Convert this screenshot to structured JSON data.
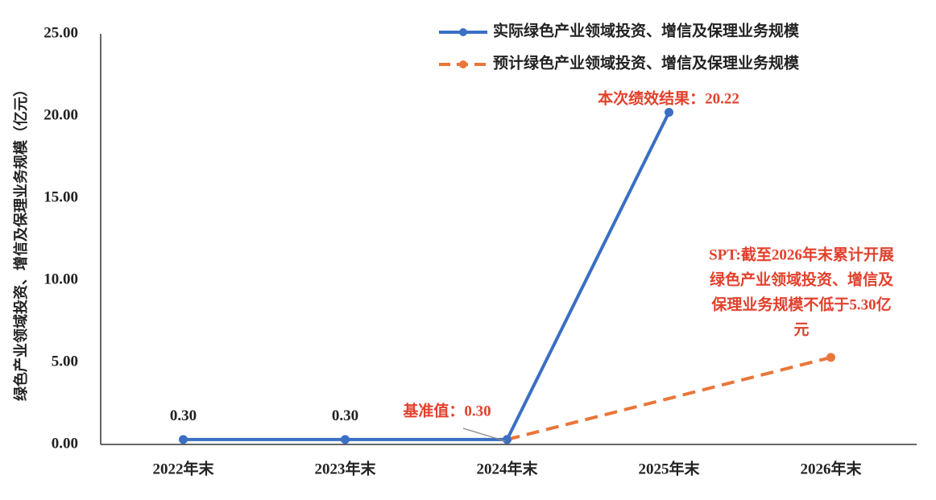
{
  "chart_data": {
    "type": "line",
    "ylabel": "绿色产业领域投资、增信及保理业务规模（亿元）",
    "categories": [
      "2022年末",
      "2023年末",
      "2024年末",
      "2025年末",
      "2026年末"
    ],
    "series": [
      {
        "name": "实际绿色产业领域投资、增信及保理业务规模",
        "color": "#3a6fc4",
        "dashed": false,
        "values": [
          0.3,
          0.3,
          0.3,
          20.22,
          null
        ],
        "value_labels": [
          "0.30",
          "0.30",
          null,
          null,
          null
        ]
      },
      {
        "name": "预计绿色产业领域投资、增信及保理业务规模",
        "color": "#e9763a",
        "dashed": true,
        "values": [
          null,
          null,
          0.3,
          2.8,
          5.3
        ]
      }
    ],
    "annotations": {
      "baseline": "基准值：0.30",
      "result": "本次绩效结果：20.22",
      "spt": [
        "SPT:截至2026年末累计开展",
        "绿色产业领域投资、增信及",
        "保理业务规模不低于5.30亿",
        "元"
      ]
    },
    "ylim": [
      0,
      25
    ],
    "yticks": [
      {
        "value": 0,
        "label": "0.00"
      },
      {
        "value": 5,
        "label": "5.00"
      },
      {
        "value": 10,
        "label": "10.00"
      },
      {
        "value": 15,
        "label": "15.00"
      },
      {
        "value": 20,
        "label": "20.00"
      },
      {
        "value": 25,
        "label": "25.00"
      }
    ],
    "grid": false,
    "legend": "upper right"
  }
}
